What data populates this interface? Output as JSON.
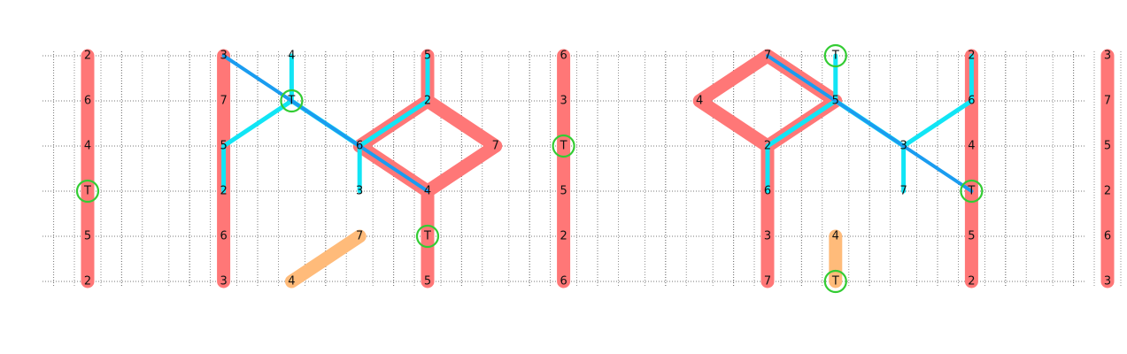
{
  "diagram": {
    "colors": {
      "background": "#ffffff",
      "grid": "#777777",
      "red_path": "#ff7777",
      "orange_path": "#ffbb7a",
      "cyan_path": "#11e5f5",
      "blue_path": "#1a9cf0",
      "highlight_circle": "#33cc33",
      "label": "#111111"
    },
    "columns": [
      {
        "labels": [
          "2",
          "6",
          "4",
          "T",
          "5",
          "2"
        ]
      },
      {
        "labels": []
      },
      {
        "labels": [
          "3",
          "7",
          "5",
          "2",
          "6",
          "3"
        ]
      },
      {
        "labels": [
          "4",
          "T",
          "",
          "",
          "",
          "4"
        ]
      },
      {
        "labels": [
          "",
          "",
          "6",
          "3",
          "7",
          ""
        ]
      },
      {
        "labels": [
          "5",
          "2",
          "",
          "4",
          "T",
          "5"
        ]
      },
      {
        "labels": [
          "",
          "",
          "7",
          "",
          "",
          ""
        ]
      },
      {
        "labels": [
          "6",
          "3",
          "T",
          "5",
          "2",
          "6"
        ]
      },
      {
        "labels": []
      },
      {
        "labels": [
          "",
          "4",
          "",
          "",
          "",
          ""
        ]
      },
      {
        "labels": [
          "7",
          "",
          "2",
          "6",
          "3",
          "7"
        ]
      },
      {
        "labels": [
          "T",
          "5",
          "",
          "",
          "4",
          "T"
        ]
      },
      {
        "labels": [
          "",
          "",
          "3",
          "7",
          "",
          ""
        ]
      },
      {
        "labels": [
          "2",
          "6",
          "4",
          "T",
          "5",
          "2"
        ]
      },
      {
        "labels": []
      },
      {
        "labels": [
          "3",
          "7",
          "5",
          "2",
          "6",
          "3"
        ]
      }
    ],
    "highlighted_nodes": [
      {
        "col": 0,
        "row": 3
      },
      {
        "col": 3,
        "row": 1
      },
      {
        "col": 5,
        "row": 4
      },
      {
        "col": 7,
        "row": 2
      },
      {
        "col": 11,
        "row": 0
      },
      {
        "col": 11,
        "row": 5
      },
      {
        "col": 13,
        "row": 3
      }
    ],
    "red_paths": [
      {
        "points": [
          [
            0,
            0
          ],
          [
            0,
            5
          ]
        ]
      },
      {
        "points": [
          [
            2,
            0
          ],
          [
            2,
            5
          ]
        ]
      },
      {
        "points": [
          [
            5,
            0
          ],
          [
            5,
            1
          ],
          [
            6,
            2
          ],
          [
            5,
            3
          ],
          [
            4,
            2
          ],
          [
            5,
            1
          ]
        ]
      },
      {
        "points": [
          [
            5,
            3
          ],
          [
            5,
            5
          ]
        ]
      },
      {
        "points": [
          [
            7,
            0
          ],
          [
            7,
            5
          ]
        ]
      },
      {
        "points": [
          [
            10,
            0
          ],
          [
            11,
            1
          ],
          [
            10,
            2
          ],
          [
            9,
            1
          ],
          [
            10,
            0
          ]
        ]
      },
      {
        "points": [
          [
            10,
            2
          ],
          [
            10,
            5
          ]
        ]
      },
      {
        "points": [
          [
            13,
            0
          ],
          [
            13,
            5
          ]
        ]
      },
      {
        "points": [
          [
            15,
            0
          ],
          [
            15,
            5
          ]
        ]
      }
    ],
    "orange_paths": [
      {
        "points": [
          [
            3,
            5
          ],
          [
            4,
            4
          ]
        ]
      },
      {
        "points": [
          [
            11,
            4
          ],
          [
            11,
            5
          ]
        ]
      }
    ],
    "cyan_paths": [
      {
        "points": [
          [
            2,
            3
          ],
          [
            2,
            2
          ],
          [
            3,
            1
          ],
          [
            3,
            0
          ]
        ]
      },
      {
        "points": [
          [
            3,
            1
          ],
          [
            4,
            2
          ],
          [
            4,
            3
          ]
        ]
      },
      {
        "points": [
          [
            4,
            2
          ],
          [
            5,
            1
          ],
          [
            5,
            0
          ]
        ]
      },
      {
        "points": [
          [
            10,
            3
          ],
          [
            10,
            2
          ],
          [
            11,
            1
          ],
          [
            11,
            0
          ]
        ]
      },
      {
        "points": [
          [
            11,
            1
          ],
          [
            12,
            2
          ],
          [
            12,
            3
          ]
        ]
      },
      {
        "points": [
          [
            12,
            2
          ],
          [
            13,
            1
          ],
          [
            13,
            0
          ]
        ]
      }
    ],
    "blue_paths": [
      {
        "points": [
          [
            2,
            0
          ],
          [
            3,
            1
          ],
          [
            4,
            2
          ],
          [
            5,
            3
          ]
        ]
      },
      {
        "points": [
          [
            10,
            0
          ],
          [
            11,
            1
          ],
          [
            12,
            2
          ],
          [
            13,
            3
          ]
        ]
      }
    ]
  }
}
